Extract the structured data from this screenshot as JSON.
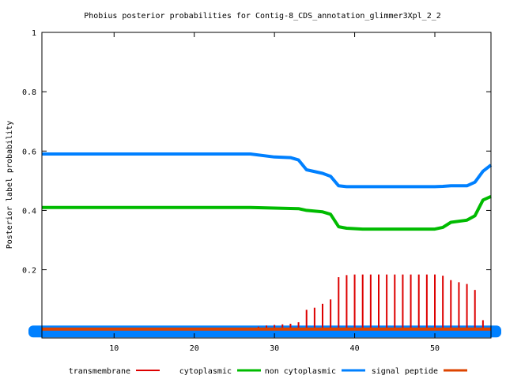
{
  "chart_data": {
    "type": "line",
    "title": "Phobius posterior probabilities for Contig-8_CDS_annotation_glimmer3Xpl_2_2",
    "xlabel": "",
    "ylabel": "Posterior label probability",
    "xlim": [
      1,
      57
    ],
    "ylim": [
      -0.03,
      1
    ],
    "x_ticks": [
      10,
      20,
      30,
      40,
      50
    ],
    "y_ticks": [
      0.2,
      0.4,
      0.6,
      0.8,
      1
    ],
    "y_tick_labels": [
      "0.2",
      "0.4",
      "0.6",
      "0.8",
      "1"
    ],
    "grid": false,
    "legend_position": "bottom",
    "series": [
      {
        "name": "transmembrane",
        "style": "impulses",
        "color": "#dd0000",
        "x": [
          27,
          28,
          29,
          30,
          31,
          32,
          33,
          34,
          35,
          36,
          37,
          38,
          39,
          40,
          41,
          42,
          43,
          44,
          45,
          46,
          47,
          48,
          49,
          50,
          51,
          52,
          53,
          54,
          55,
          56
        ],
        "values": [
          0.005,
          0.008,
          0.012,
          0.014,
          0.016,
          0.018,
          0.023,
          0.065,
          0.072,
          0.085,
          0.1,
          0.175,
          0.182,
          0.184,
          0.184,
          0.184,
          0.184,
          0.184,
          0.184,
          0.184,
          0.184,
          0.184,
          0.184,
          0.184,
          0.18,
          0.165,
          0.158,
          0.152,
          0.132,
          0.03
        ]
      },
      {
        "name": "cytoplasmic",
        "style": "line",
        "color": "#00bb00",
        "x": [
          1,
          10,
          20,
          27,
          31,
          33,
          34,
          36,
          37,
          38,
          39,
          41,
          45,
          49,
          50,
          51,
          52,
          54,
          55,
          56,
          57
        ],
        "values": [
          0.41,
          0.41,
          0.41,
          0.41,
          0.407,
          0.406,
          0.4,
          0.395,
          0.387,
          0.345,
          0.34,
          0.337,
          0.337,
          0.337,
          0.337,
          0.343,
          0.36,
          0.367,
          0.382,
          0.435,
          0.447
        ]
      },
      {
        "name": "non cytoplasmic",
        "style": "line",
        "color": "#0080ff",
        "x": [
          1,
          10,
          20,
          27,
          30,
          32,
          33,
          34,
          36,
          37,
          38,
          39,
          41,
          45,
          49,
          50,
          51,
          52,
          54,
          55,
          56,
          57
        ],
        "values": [
          0.59,
          0.59,
          0.59,
          0.59,
          0.58,
          0.578,
          0.57,
          0.537,
          0.525,
          0.515,
          0.483,
          0.48,
          0.48,
          0.48,
          0.48,
          0.48,
          0.481,
          0.483,
          0.483,
          0.495,
          0.532,
          0.553
        ]
      },
      {
        "name": "signal peptide",
        "style": "line",
        "color": "#dd4400",
        "x": [
          1,
          57
        ],
        "values": [
          0,
          0
        ]
      }
    ],
    "extra_band": {
      "color": "#0080ff",
      "y_low": -0.028,
      "y_high": 0.012
    },
    "legend": [
      {
        "label": "transmembrane",
        "color": "#dd0000"
      },
      {
        "label": "cytoplasmic",
        "color": "#00bb00"
      },
      {
        "label": "non cytoplasmic",
        "color": "#0080ff"
      },
      {
        "label": "signal peptide",
        "color": "#dd4400"
      }
    ]
  }
}
